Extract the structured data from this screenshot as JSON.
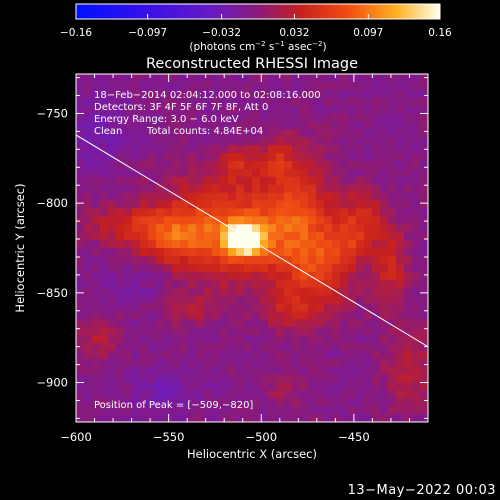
{
  "chart_data": {
    "type": "heatmap",
    "title": "Reconstructed RHESSI Image",
    "xlabel": "Heliocentric X (arcsec)",
    "ylabel": "Heliocentric Y (arcsec)",
    "xlim": [
      -600,
      -410
    ],
    "ylim": [
      -922,
      -728
    ],
    "x_ticks": [
      -600,
      -550,
      -500,
      -450
    ],
    "y_ticks": [
      -750,
      -800,
      -850,
      -900
    ],
    "x_tick_labels": [
      "−600",
      "−550",
      "−500",
      "−450"
    ],
    "y_tick_labels": [
      "−750",
      "−800",
      "−850",
      "−900"
    ],
    "colorbar": {
      "range": [
        -0.16,
        0.16
      ],
      "ticks": [
        -0.16,
        -0.097,
        -0.032,
        0.032,
        0.097,
        0.16
      ],
      "tick_labels": [
        "−0.16",
        "−0.097",
        "−0.032",
        "0.032",
        "0.097",
        "0.16"
      ],
      "unit_base": "(photons cm",
      "unit_exp1": "−2",
      "unit_mid": " s",
      "unit_exp2": "−1",
      "unit_mid2": " asec",
      "unit_exp3": "−2",
      "unit_end": ")"
    },
    "peak": {
      "x": -509,
      "y": -820,
      "value": 0.16
    },
    "limb_line": [
      [
        -600,
        -762
      ],
      [
        -410,
        -880
      ]
    ],
    "emission_blobs": [
      {
        "x": -509,
        "y": -820,
        "sx": 7,
        "sy": 6,
        "a": 0.17
      },
      {
        "x": -520,
        "y": -815,
        "sx": 28,
        "sy": 20,
        "a": 0.08
      },
      {
        "x": -480,
        "y": -810,
        "sx": 14,
        "sy": 25,
        "a": 0.06
      },
      {
        "x": -465,
        "y": -838,
        "sx": 12,
        "sy": 16,
        "a": 0.05
      },
      {
        "x": -450,
        "y": -820,
        "sx": 8,
        "sy": 8,
        "a": 0.04
      },
      {
        "x": -445,
        "y": -805,
        "sx": 8,
        "sy": 10,
        "a": 0.04
      },
      {
        "x": -430,
        "y": -835,
        "sx": 7,
        "sy": 18,
        "a": 0.045
      },
      {
        "x": -548,
        "y": -818,
        "sx": 14,
        "sy": 9,
        "a": 0.05
      },
      {
        "x": -575,
        "y": -812,
        "sx": 14,
        "sy": 7,
        "a": 0.035
      },
      {
        "x": -588,
        "y": -875,
        "sx": 8,
        "sy": 10,
        "a": 0.03
      },
      {
        "x": -538,
        "y": -860,
        "sx": 10,
        "sy": 6,
        "a": 0.03
      },
      {
        "x": -512,
        "y": -778,
        "sx": 10,
        "sy": 7,
        "a": 0.035
      },
      {
        "x": -490,
        "y": -775,
        "sx": 9,
        "sy": 7,
        "a": 0.03
      },
      {
        "x": -485,
        "y": -860,
        "sx": 10,
        "sy": 8,
        "a": 0.035
      },
      {
        "x": -420,
        "y": -892,
        "sx": 10,
        "sy": 15,
        "a": 0.035
      },
      {
        "x": -488,
        "y": -905,
        "sx": 8,
        "sy": 6,
        "a": 0.02
      },
      {
        "x": -553,
        "y": -905,
        "sx": 12,
        "sy": 8,
        "a": -0.02
      },
      {
        "x": -590,
        "y": -760,
        "sx": 14,
        "sy": 14,
        "a": -0.02
      },
      {
        "x": -565,
        "y": -845,
        "sx": 16,
        "sy": 10,
        "a": -0.015
      }
    ],
    "info": {
      "line1": "18−Feb−2014 02:04:12.000 to 02:08:16.000",
      "line2": "Detectors: 3F 4F 5F 6F 7F 8F, Att 0",
      "line3": "Energy Range: 3.0 − 6.0 keV",
      "line4a": "Clean",
      "line4b": "Total counts: 4.84E+04"
    },
    "peak_label": "Position of Peak = [−509,−820]"
  },
  "footer": {
    "date": "13−May−2022 00:03"
  }
}
